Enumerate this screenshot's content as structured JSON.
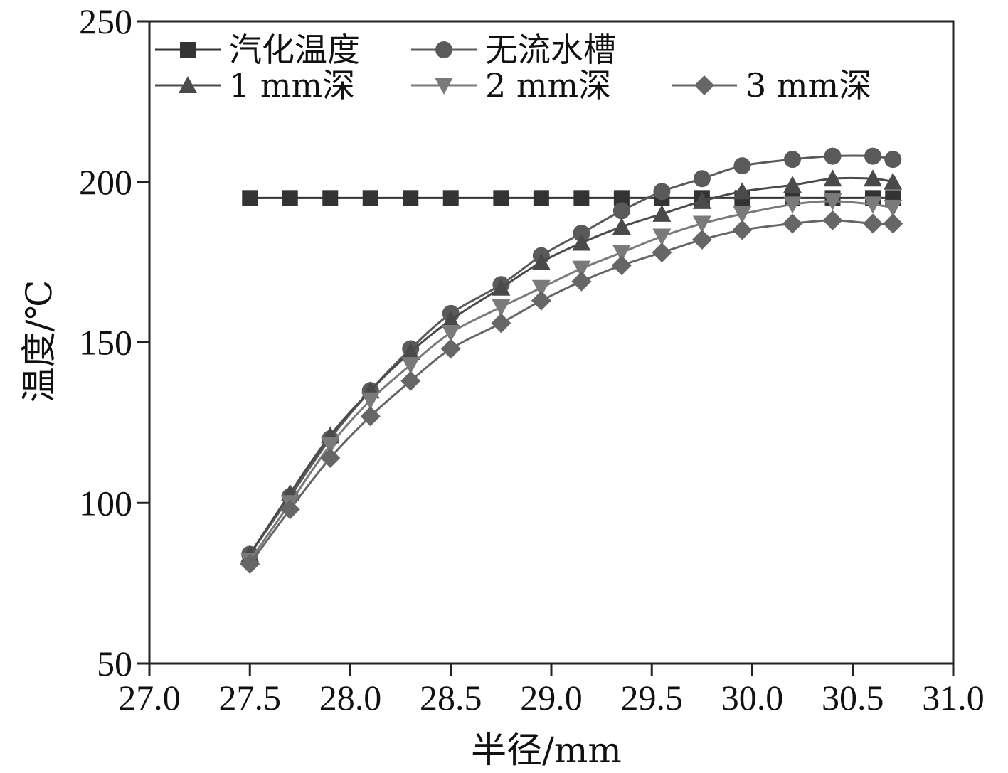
{
  "chart_data": {
    "type": "line",
    "title": "",
    "xlabel": "半径/mm",
    "ylabel": "温度/℃",
    "xlim": [
      27.0,
      31.0
    ],
    "ylim": [
      50,
      250
    ],
    "xticks": [
      "27.0",
      "27.5",
      "28.0",
      "28.5",
      "29.0",
      "29.5",
      "30.0",
      "30.5",
      "31.0"
    ],
    "yticks": [
      "50",
      "100",
      "150",
      "200",
      "250"
    ],
    "grid": false,
    "legend_position": "top",
    "x": [
      27.5,
      27.7,
      27.9,
      28.1,
      28.3,
      28.5,
      28.75,
      28.95,
      29.15,
      29.35,
      29.55,
      29.75,
      29.95,
      30.2,
      30.4,
      30.6,
      30.7
    ],
    "series": [
      {
        "name": "汽化温度",
        "marker": "square",
        "color": "#333333",
        "values": [
          195,
          195,
          195,
          195,
          195,
          195,
          195,
          195,
          195,
          195,
          195,
          195,
          195,
          195,
          195,
          195,
          195
        ]
      },
      {
        "name": "无流水槽",
        "marker": "circle",
        "color": "#5a5a5a",
        "values": [
          84,
          102,
          120,
          135,
          148,
          159,
          168,
          177,
          184,
          191,
          197,
          201,
          205,
          207,
          208,
          208,
          207
        ]
      },
      {
        "name": "1 mm深",
        "marker": "triangle-up",
        "color": "#4a4a4a",
        "values": [
          84,
          103,
          121,
          135,
          147,
          157,
          167,
          175,
          181,
          186,
          190,
          194,
          197,
          199,
          201,
          201,
          200
        ]
      },
      {
        "name": "2 mm深",
        "marker": "triangle-down",
        "color": "#7a7a7a",
        "values": [
          82,
          100,
          118,
          132,
          143,
          153,
          161,
          167,
          173,
          178,
          183,
          187,
          190,
          193,
          194,
          193,
          192
        ]
      },
      {
        "name": "3 mm深",
        "marker": "diamond",
        "color": "#666666",
        "values": [
          81,
          98,
          114,
          127,
          138,
          148,
          156,
          163,
          169,
          174,
          178,
          182,
          185,
          187,
          188,
          187,
          187
        ]
      }
    ]
  }
}
